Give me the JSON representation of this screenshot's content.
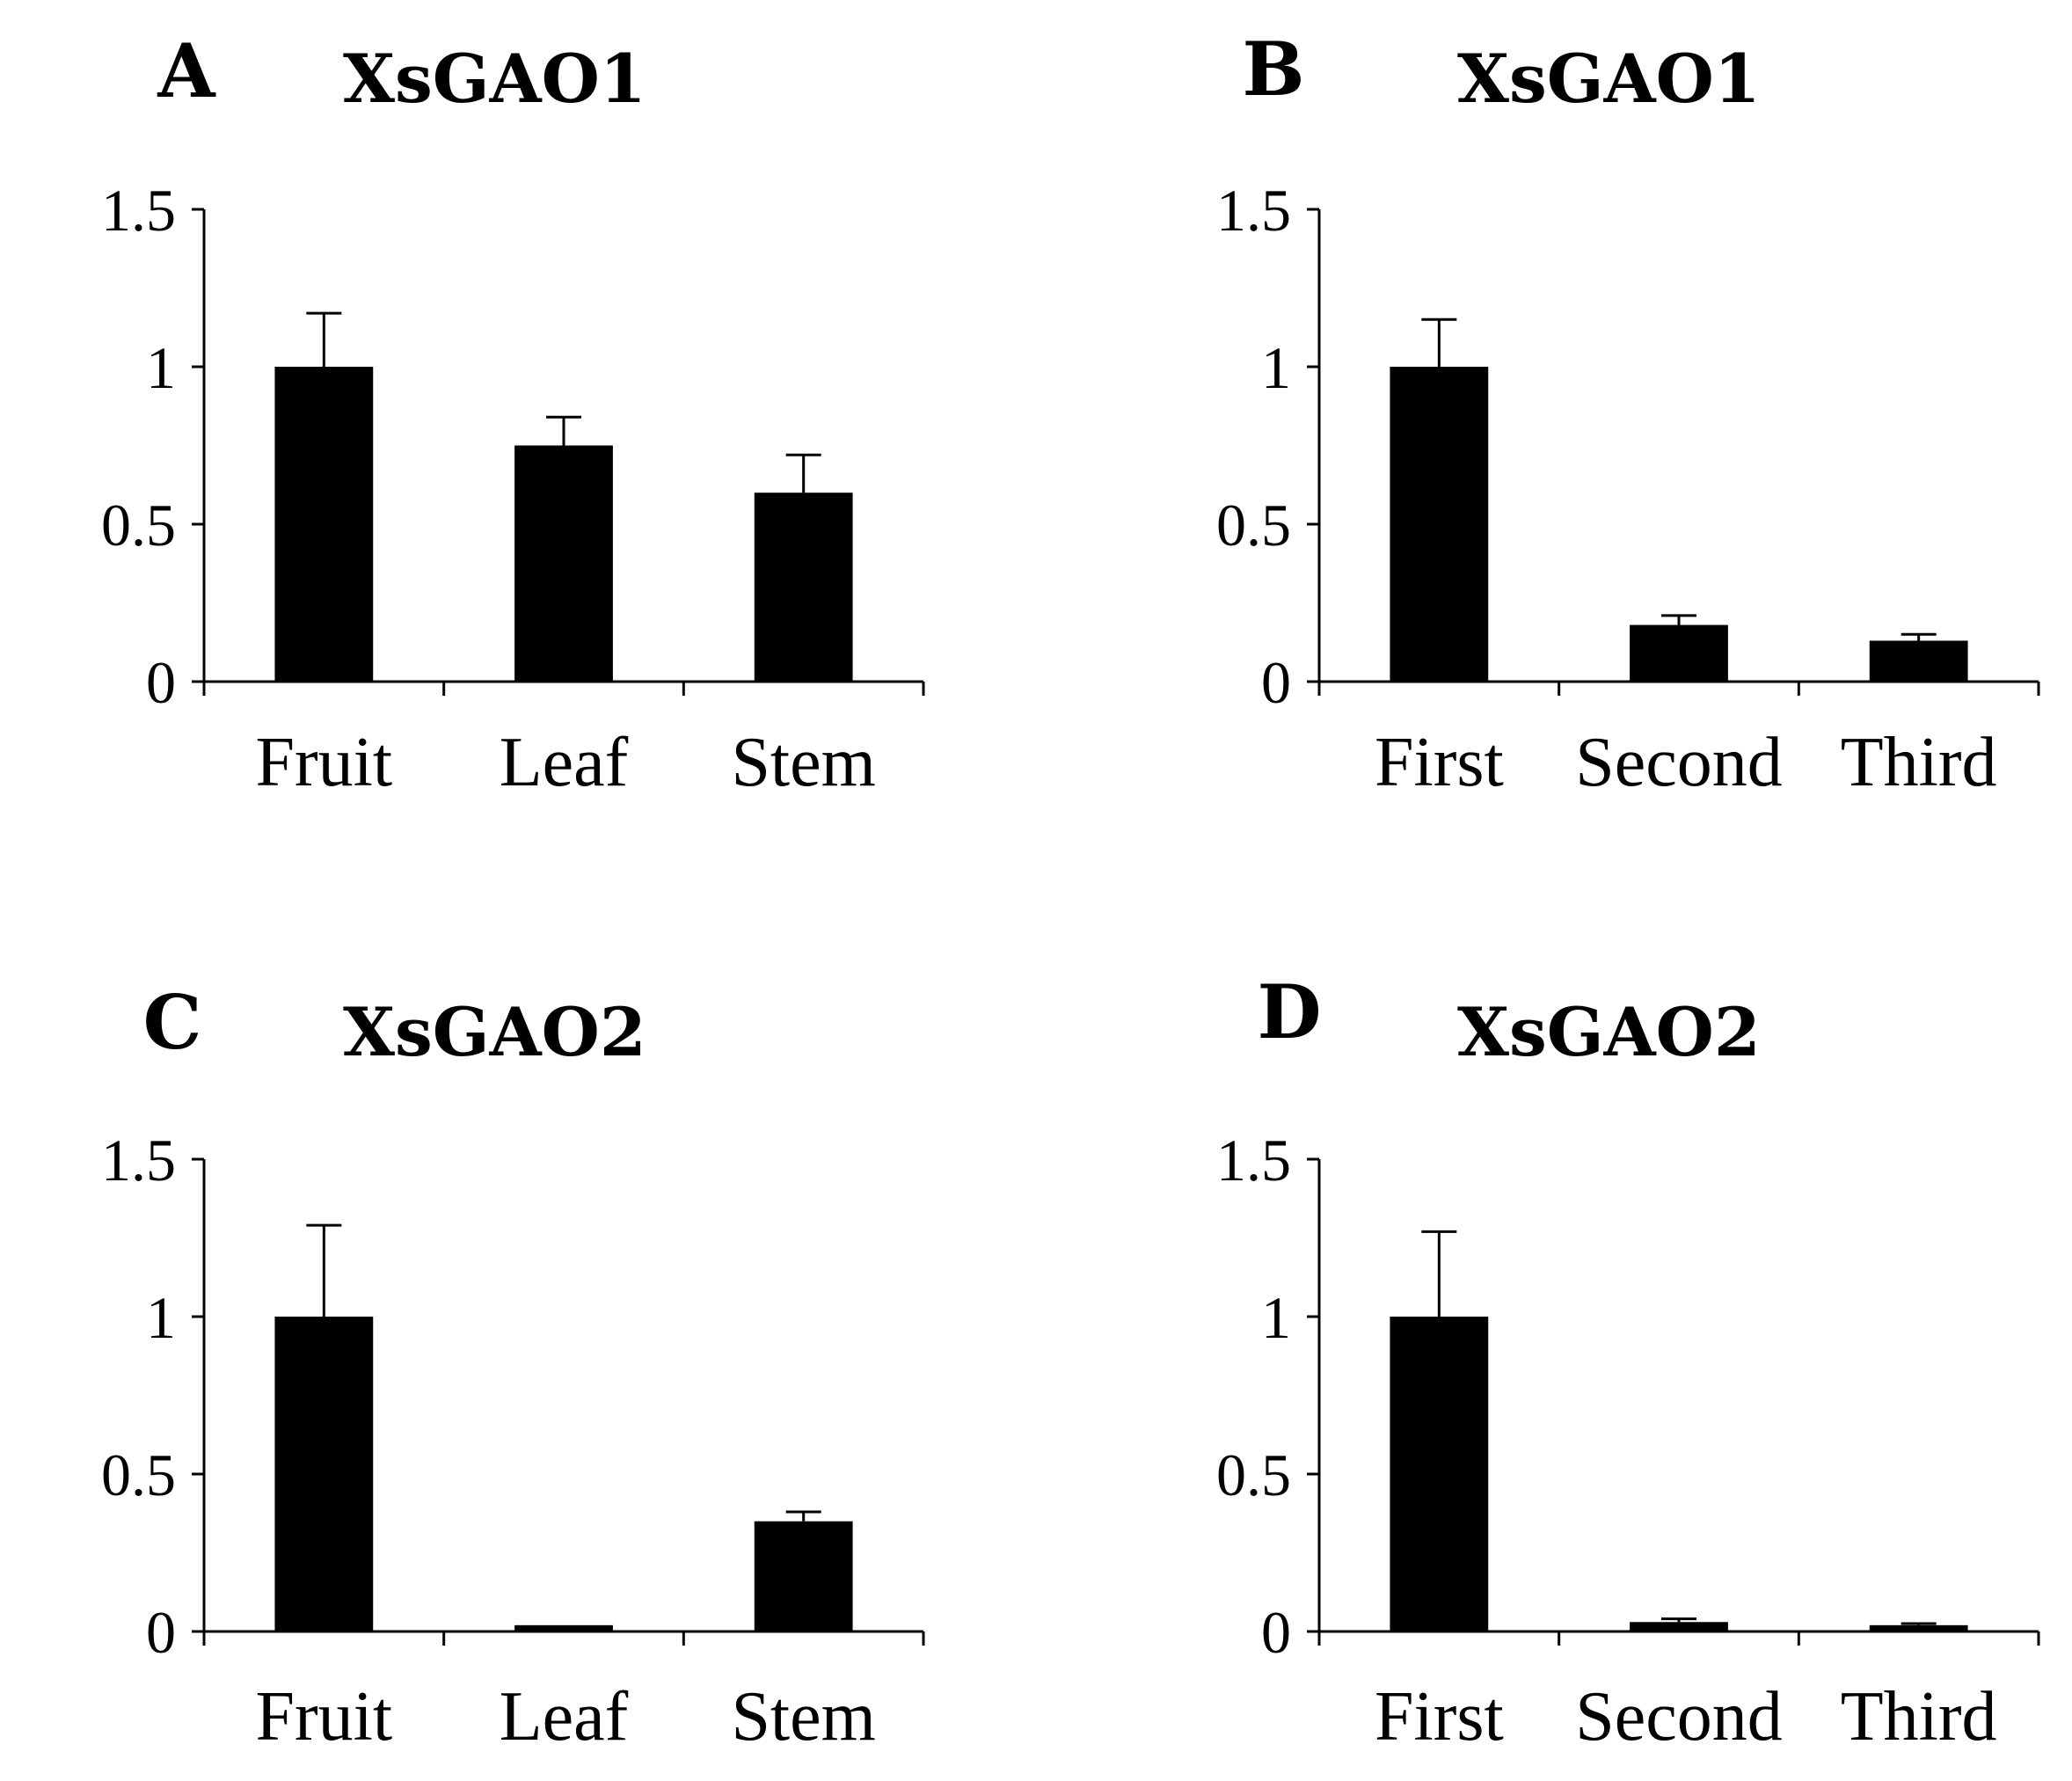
{
  "chart_data": [
    {
      "type": "bar",
      "panel": "A",
      "title": "XsGAO1",
      "categories": [
        "Fruit",
        "Leaf",
        "Stem"
      ],
      "values": [
        1.0,
        0.75,
        0.6
      ],
      "errors": [
        0.17,
        0.09,
        0.12
      ],
      "yticks": [
        "0",
        "0.5",
        "1",
        "1.5"
      ],
      "ylim": [
        0,
        1.5
      ],
      "xlabel": "",
      "ylabel": "",
      "color": "#000000"
    },
    {
      "type": "bar",
      "panel": "B",
      "title": "XsGAO1",
      "categories": [
        "First",
        "Second",
        "Third"
      ],
      "values": [
        1.0,
        0.18,
        0.13
      ],
      "errors": [
        0.15,
        0.03,
        0.02
      ],
      "yticks": [
        "0",
        "0.5",
        "1",
        "1.5"
      ],
      "ylim": [
        0,
        1.5
      ],
      "xlabel": "",
      "ylabel": "",
      "color": "#000000"
    },
    {
      "type": "bar",
      "panel": "C",
      "title": "XsGAO2",
      "categories": [
        "Fruit",
        "Leaf",
        "Stem"
      ],
      "values": [
        1.0,
        0.02,
        0.35
      ],
      "errors": [
        0.29,
        0.0,
        0.03
      ],
      "yticks": [
        "0",
        "0.5",
        "1",
        "1.5"
      ],
      "ylim": [
        0,
        1.5
      ],
      "xlabel": "",
      "ylabel": "",
      "color": "#000000"
    },
    {
      "type": "bar",
      "panel": "D",
      "title": "XsGAO2",
      "categories": [
        "First",
        "Second",
        "Third"
      ],
      "values": [
        1.0,
        0.03,
        0.02
      ],
      "errors": [
        0.27,
        0.01,
        0.005
      ],
      "yticks": [
        "0",
        "0.5",
        "1",
        "1.5"
      ],
      "ylim": [
        0,
        1.5
      ],
      "xlabel": "",
      "ylabel": "",
      "color": "#000000"
    }
  ]
}
